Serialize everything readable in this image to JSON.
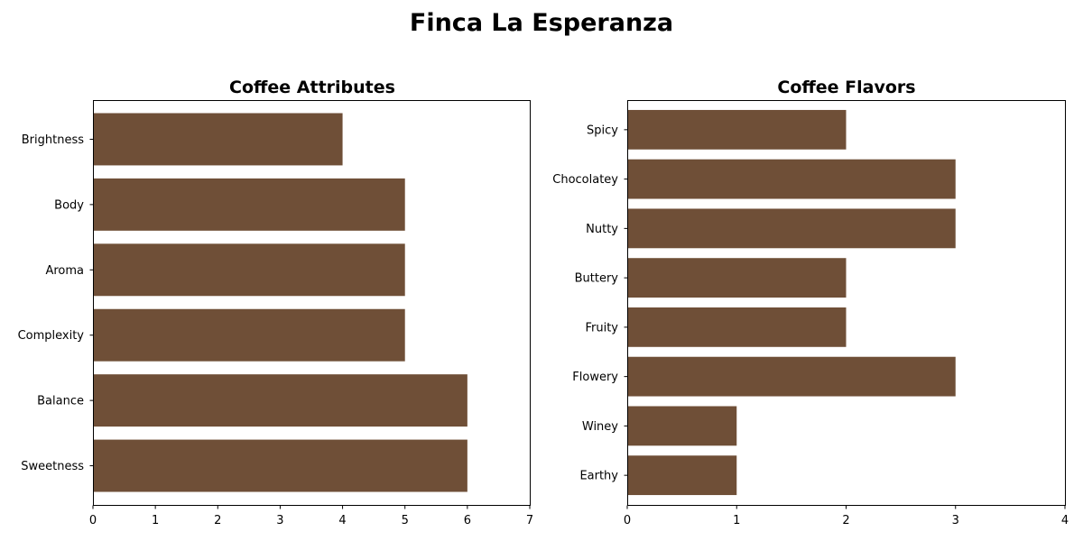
{
  "figure": {
    "title": "Finca La Esperanza"
  },
  "colors": {
    "bar": "#6f4f37",
    "background": "#ffffff",
    "axis": "#000000"
  },
  "chart_data": [
    {
      "type": "bar",
      "orientation": "horizontal",
      "title": "Coffee Attributes",
      "categories": [
        "Sweetness",
        "Balance",
        "Complexity",
        "Aroma",
        "Body",
        "Brightness"
      ],
      "values": [
        6,
        6,
        5,
        5,
        5,
        4
      ],
      "xlim": [
        0,
        7
      ],
      "xticks": [
        0,
        1,
        2,
        3,
        4,
        5,
        6,
        7
      ],
      "xlabel": "",
      "ylabel": "",
      "grid": false
    },
    {
      "type": "bar",
      "orientation": "horizontal",
      "title": "Coffee Flavors",
      "categories": [
        "Earthy",
        "Winey",
        "Flowery",
        "Fruity",
        "Buttery",
        "Nutty",
        "Chocolatey",
        "Spicy"
      ],
      "values": [
        1,
        1,
        3,
        2,
        2,
        3,
        3,
        2
      ],
      "xlim": [
        0,
        4
      ],
      "xticks": [
        0,
        1,
        2,
        3,
        4
      ],
      "xlabel": "",
      "ylabel": "",
      "grid": false
    }
  ]
}
